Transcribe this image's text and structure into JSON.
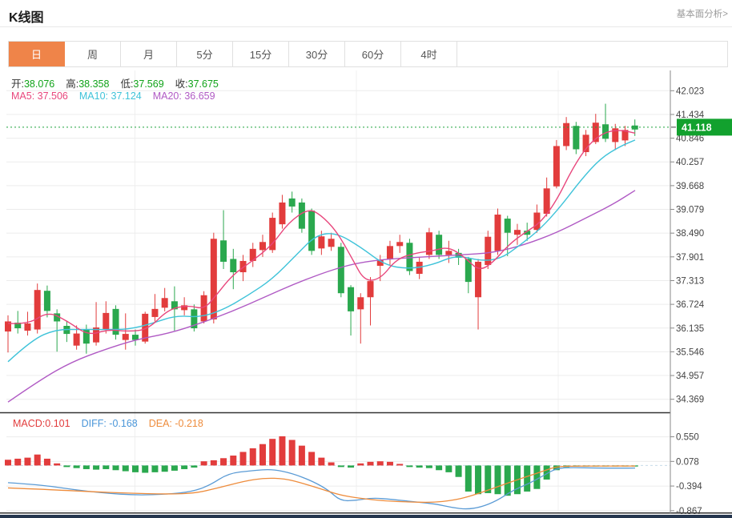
{
  "header": {
    "title": "K线图",
    "link": "基本面分析>"
  },
  "tabs": [
    {
      "label": "日",
      "active": true
    },
    {
      "label": "周"
    },
    {
      "label": "月"
    },
    {
      "label": "5分"
    },
    {
      "label": "15分"
    },
    {
      "label": "30分"
    },
    {
      "label": "60分"
    },
    {
      "label": "4时"
    }
  ],
  "main_chart": {
    "ohlc": [
      {
        "label": "开:",
        "value": "38.076"
      },
      {
        "label": "高:",
        "value": "38.358"
      },
      {
        "label": "低:",
        "value": "37.569"
      },
      {
        "label": "收:",
        "value": "37.675"
      }
    ],
    "ma_row": [
      {
        "text": "MA5: 37.506",
        "color": "#e8467c"
      },
      {
        "text": "MA10: 37.124",
        "color": "#3fc3d9"
      },
      {
        "text": "MA20: 36.659",
        "color": "#b05ac4"
      }
    ],
    "last_price": "41.118"
  },
  "macd_row": [
    {
      "text": "MACD:0.101",
      "color": "#e23c3c"
    },
    {
      "text": "DIFF: -0.168",
      "color": "#4a96d9"
    },
    {
      "text": "DEA: -0.218",
      "color": "#ee8c3c"
    }
  ],
  "colors": {
    "up_red": "#e23c3c",
    "down_green": "#2aa84e",
    "badge_green": "#12a12e",
    "price_line_green": "#1fa33c",
    "tab_active_orange": "#ef8449",
    "ma5_pink": "#e8467c",
    "ma10_cyan": "#3fc3d9",
    "ma20_purple": "#b05ac4",
    "diff_blue": "#5b9bd5",
    "dea_orange": "#ee8c3c",
    "bottom_bar_navy": "#24354d"
  },
  "chart_data": [
    {
      "type": "candlestick",
      "y_ticks": [
        "42.023",
        "41.434",
        "40.846",
        "40.257",
        "39.668",
        "39.079",
        "38.490",
        "37.901",
        "37.313",
        "36.724",
        "36.135",
        "35.546",
        "34.957",
        "34.369"
      ],
      "legend": [
        "MA5",
        "MA10",
        "MA20"
      ],
      "candles": [
        [
          36.05,
          36.45,
          35.53,
          36.3
        ],
        [
          36.27,
          36.56,
          36.0,
          36.13
        ],
        [
          36.07,
          36.54,
          35.95,
          36.25
        ],
        [
          36.1,
          37.24,
          36.0,
          37.08
        ],
        [
          37.06,
          37.19,
          36.4,
          36.56
        ],
        [
          36.5,
          36.6,
          35.55,
          36.3
        ],
        [
          36.19,
          36.32,
          35.79,
          35.99
        ],
        [
          35.7,
          36.2,
          35.6,
          36.0
        ],
        [
          36.1,
          36.22,
          35.5,
          35.75
        ],
        [
          35.78,
          36.78,
          35.7,
          36.15
        ],
        [
          36.11,
          36.8,
          36.0,
          36.51
        ],
        [
          36.61,
          36.7,
          35.85,
          35.97
        ],
        [
          35.84,
          36.5,
          35.6,
          35.99
        ],
        [
          35.97,
          36.1,
          35.7,
          35.84
        ],
        [
          35.8,
          36.54,
          35.75,
          36.49
        ],
        [
          36.41,
          36.98,
          36.3,
          36.61
        ],
        [
          36.64,
          37.13,
          36.55,
          36.88
        ],
        [
          36.8,
          37.17,
          36.07,
          36.6
        ],
        [
          36.58,
          36.9,
          36.45,
          36.7
        ],
        [
          36.6,
          36.72,
          36.05,
          36.13
        ],
        [
          36.3,
          37.05,
          36.25,
          36.95
        ],
        [
          36.35,
          38.5,
          36.25,
          38.35
        ],
        [
          38.31,
          39.06,
          37.6,
          37.78
        ],
        [
          37.85,
          38.1,
          37.1,
          37.52
        ],
        [
          37.52,
          37.95,
          37.3,
          37.8
        ],
        [
          37.8,
          38.25,
          37.65,
          38.1
        ],
        [
          38.07,
          38.45,
          37.9,
          38.27
        ],
        [
          38.07,
          39.0,
          38.0,
          38.87
        ],
        [
          38.71,
          39.44,
          38.6,
          39.25
        ],
        [
          39.35,
          39.52,
          39.0,
          39.15
        ],
        [
          39.25,
          39.35,
          38.5,
          38.6
        ],
        [
          39.05,
          39.1,
          37.95,
          38.05
        ],
        [
          38.11,
          38.55,
          37.95,
          38.41
        ],
        [
          38.15,
          38.5,
          38.05,
          38.35
        ],
        [
          38.15,
          38.25,
          36.9,
          37.0
        ],
        [
          37.15,
          37.2,
          35.95,
          36.55
        ],
        [
          36.6,
          37.0,
          35.75,
          36.9
        ],
        [
          36.9,
          37.4,
          36.2,
          37.3
        ],
        [
          37.68,
          37.95,
          37.3,
          37.82
        ],
        [
          37.85,
          38.3,
          37.7,
          38.17
        ],
        [
          38.17,
          38.45,
          38.0,
          38.27
        ],
        [
          38.25,
          38.35,
          37.45,
          37.55
        ],
        [
          37.48,
          37.9,
          37.35,
          37.78
        ],
        [
          37.95,
          38.62,
          37.85,
          38.51
        ],
        [
          38.45,
          38.55,
          37.85,
          37.95
        ],
        [
          37.95,
          38.3,
          37.75,
          38.05
        ],
        [
          38.0,
          38.1,
          37.7,
          37.88
        ],
        [
          37.85,
          37.9,
          37.0,
          37.28
        ],
        [
          36.9,
          37.85,
          36.1,
          37.78
        ],
        [
          37.7,
          38.55,
          37.6,
          38.4
        ],
        [
          38.05,
          39.1,
          37.95,
          38.95
        ],
        [
          38.85,
          38.92,
          37.92,
          38.5
        ],
        [
          38.45,
          38.72,
          38.2,
          38.57
        ],
        [
          38.55,
          38.75,
          38.3,
          38.45
        ],
        [
          38.57,
          39.2,
          38.5,
          39.0
        ],
        [
          38.97,
          39.87,
          38.9,
          39.6
        ],
        [
          39.65,
          40.8,
          39.6,
          40.65
        ],
        [
          40.65,
          41.37,
          40.55,
          41.22
        ],
        [
          41.15,
          41.25,
          40.45,
          40.57
        ],
        [
          40.5,
          41.05,
          40.4,
          40.93
        ],
        [
          40.75,
          41.45,
          40.7,
          41.23
        ],
        [
          41.19,
          41.7,
          40.75,
          40.83
        ],
        [
          40.75,
          41.2,
          40.55,
          41.09
        ],
        [
          40.79,
          41.15,
          40.65,
          41.05
        ],
        [
          41.16,
          41.31,
          40.9,
          41.06
        ]
      ],
      "ma5": [
        [
          10,
          36.25
        ],
        [
          35,
          36.22
        ],
        [
          60,
          36.55
        ],
        [
          85,
          36.3
        ],
        [
          110,
          35.95
        ],
        [
          135,
          36.1
        ],
        [
          160,
          36.05
        ],
        [
          185,
          36.1
        ],
        [
          210,
          36.6
        ],
        [
          235,
          36.7
        ],
        [
          255,
          36.6
        ],
        [
          270,
          36.95
        ],
        [
          290,
          37.45
        ],
        [
          315,
          37.8
        ],
        [
          340,
          38.2
        ],
        [
          360,
          38.75
        ],
        [
          385,
          39.1
        ],
        [
          400,
          38.95
        ],
        [
          420,
          38.55
        ],
        [
          440,
          37.85
        ],
        [
          455,
          37.3
        ],
        [
          475,
          37.35
        ],
        [
          495,
          37.85
        ],
        [
          520,
          38.0
        ],
        [
          540,
          38.05
        ],
        [
          560,
          38.15
        ],
        [
          580,
          37.9
        ],
        [
          598,
          37.55
        ],
        [
          615,
          37.75
        ],
        [
          635,
          38.2
        ],
        [
          655,
          38.5
        ],
        [
          675,
          38.75
        ],
        [
          695,
          39.3
        ],
        [
          715,
          40.1
        ],
        [
          735,
          40.7
        ],
        [
          755,
          41.0
        ],
        [
          775,
          41.05
        ],
        [
          793,
          40.97
        ]
      ],
      "ma10": [
        [
          10,
          35.3
        ],
        [
          40,
          35.85
        ],
        [
          70,
          36.1
        ],
        [
          100,
          36.1
        ],
        [
          130,
          36.1
        ],
        [
          160,
          36.1
        ],
        [
          190,
          36.25
        ],
        [
          220,
          36.45
        ],
        [
          250,
          36.4
        ],
        [
          280,
          36.6
        ],
        [
          310,
          36.95
        ],
        [
          340,
          37.35
        ],
        [
          370,
          37.95
        ],
        [
          395,
          38.45
        ],
        [
          420,
          38.5
        ],
        [
          450,
          38.15
        ],
        [
          480,
          37.7
        ],
        [
          510,
          37.6
        ],
        [
          540,
          37.7
        ],
        [
          570,
          37.95
        ],
        [
          600,
          37.8
        ],
        [
          625,
          37.85
        ],
        [
          650,
          38.2
        ],
        [
          675,
          38.6
        ],
        [
          700,
          39.15
        ],
        [
          725,
          39.8
        ],
        [
          750,
          40.35
        ],
        [
          775,
          40.65
        ],
        [
          793,
          40.8
        ]
      ],
      "ma20": [
        [
          10,
          34.3
        ],
        [
          50,
          34.85
        ],
        [
          90,
          35.3
        ],
        [
          130,
          35.6
        ],
        [
          170,
          35.85
        ],
        [
          210,
          36.0
        ],
        [
          250,
          36.25
        ],
        [
          290,
          36.55
        ],
        [
          330,
          36.9
        ],
        [
          370,
          37.25
        ],
        [
          410,
          37.55
        ],
        [
          445,
          37.75
        ],
        [
          485,
          37.85
        ],
        [
          530,
          37.9
        ],
        [
          575,
          37.95
        ],
        [
          615,
          38.0
        ],
        [
          655,
          38.2
        ],
        [
          695,
          38.5
        ],
        [
          735,
          38.9
        ],
        [
          765,
          39.2
        ],
        [
          793,
          39.55
        ]
      ]
    },
    {
      "type": "bar",
      "y_ticks": [
        "0.550",
        "0.078",
        "-0.394",
        "-0.867"
      ],
      "legend": [
        "MACD",
        "DIFF",
        "DEA"
      ],
      "values": [
        0.11,
        0.13,
        0.15,
        0.21,
        0.13,
        0.04,
        -0.03,
        -0.05,
        -0.07,
        -0.08,
        -0.07,
        -0.09,
        -0.11,
        -0.13,
        -0.14,
        -0.13,
        -0.12,
        -0.1,
        -0.07,
        -0.04,
        0.08,
        0.1,
        0.14,
        0.19,
        0.26,
        0.33,
        0.41,
        0.51,
        0.56,
        0.49,
        0.38,
        0.26,
        0.15,
        0.06,
        -0.03,
        -0.04,
        0.04,
        0.07,
        0.08,
        0.07,
        0.03,
        -0.03,
        -0.04,
        -0.05,
        -0.09,
        -0.13,
        -0.22,
        -0.5,
        -0.55,
        -0.53,
        -0.55,
        -0.58,
        -0.55,
        -0.5,
        -0.45,
        -0.27,
        -0.09,
        -0.03,
        -0.02,
        -0.02,
        -0.02,
        -0.02,
        -0.02,
        -0.02,
        -0.02
      ],
      "diff": [
        [
          10,
          -0.33
        ],
        [
          50,
          -0.37
        ],
        [
          90,
          -0.46
        ],
        [
          130,
          -0.53
        ],
        [
          170,
          -0.57
        ],
        [
          210,
          -0.55
        ],
        [
          240,
          -0.5
        ],
        [
          262,
          -0.38
        ],
        [
          285,
          -0.15
        ],
        [
          315,
          -0.1
        ],
        [
          340,
          -0.07
        ],
        [
          365,
          -0.15
        ],
        [
          390,
          -0.3
        ],
        [
          410,
          -0.47
        ],
        [
          425,
          -0.68
        ],
        [
          445,
          -0.67
        ],
        [
          465,
          -0.62
        ],
        [
          490,
          -0.65
        ],
        [
          520,
          -0.7
        ],
        [
          545,
          -0.74
        ],
        [
          565,
          -0.81
        ],
        [
          583,
          -0.84
        ],
        [
          600,
          -0.8
        ],
        [
          620,
          -0.68
        ],
        [
          640,
          -0.48
        ],
        [
          660,
          -0.35
        ],
        [
          678,
          -0.2
        ],
        [
          695,
          -0.05
        ],
        [
          715,
          -0.04
        ],
        [
          745,
          -0.05
        ],
        [
          775,
          -0.05
        ],
        [
          793,
          -0.05
        ]
      ],
      "dea": [
        [
          10,
          -0.43
        ],
        [
          60,
          -0.46
        ],
        [
          110,
          -0.5
        ],
        [
          160,
          -0.53
        ],
        [
          210,
          -0.55
        ],
        [
          245,
          -0.53
        ],
        [
          275,
          -0.42
        ],
        [
          305,
          -0.3
        ],
        [
          330,
          -0.24
        ],
        [
          355,
          -0.25
        ],
        [
          380,
          -0.35
        ],
        [
          405,
          -0.47
        ],
        [
          425,
          -0.57
        ],
        [
          450,
          -0.63
        ],
        [
          480,
          -0.68
        ],
        [
          510,
          -0.7
        ],
        [
          540,
          -0.71
        ],
        [
          565,
          -0.67
        ],
        [
          585,
          -0.6
        ],
        [
          610,
          -0.47
        ],
        [
          635,
          -0.33
        ],
        [
          660,
          -0.2
        ],
        [
          680,
          -0.1
        ],
        [
          695,
          -0.02
        ],
        [
          720,
          -0.01
        ],
        [
          750,
          -0.01
        ],
        [
          775,
          -0.01
        ],
        [
          793,
          -0.01
        ]
      ]
    }
  ]
}
